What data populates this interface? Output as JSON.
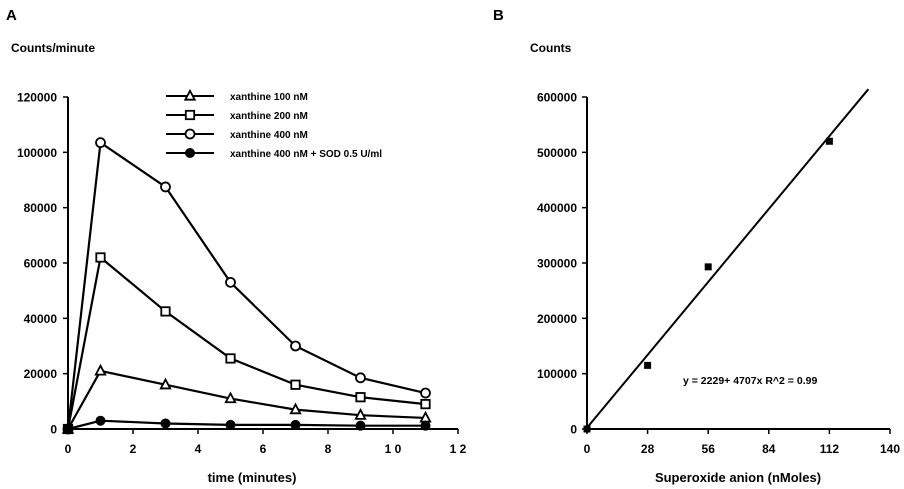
{
  "chart_data": [
    {
      "panel_label": "A",
      "type": "line",
      "ylabel": "Counts/minute",
      "xlabel": "time (minutes)",
      "xlim": [
        0,
        12
      ],
      "ylim": [
        0,
        120000
      ],
      "xticks": [
        "0",
        "2",
        "4",
        "6",
        "8",
        "1 0",
        "1 2"
      ],
      "yticks": [
        "0",
        "20000",
        "40000",
        "60000",
        "80000",
        "100000",
        "120000"
      ],
      "legend_position": "top-right",
      "grid": false,
      "x": [
        0,
        1,
        3,
        5,
        7,
        9,
        11
      ],
      "series": [
        {
          "name": "xanthine 100 nM",
          "marker": "triangle-open",
          "values": [
            0,
            21000,
            16000,
            11000,
            7000,
            5000,
            4000
          ]
        },
        {
          "name": "xanthine 200 nM",
          "marker": "square-open",
          "values": [
            0,
            62000,
            42500,
            25500,
            16000,
            11500,
            9000
          ]
        },
        {
          "name": "xanthine 400 nM",
          "marker": "circle-open",
          "values": [
            0,
            103500,
            87500,
            53000,
            30000,
            18500,
            13000
          ]
        },
        {
          "name": "xanthine 400 nM + SOD 0.5 U/ml",
          "marker": "circle-filled",
          "values": [
            0,
            3000,
            2000,
            1500,
            1500,
            1200,
            1200
          ]
        }
      ]
    },
    {
      "panel_label": "B",
      "type": "scatter",
      "ylabel": "Counts",
      "xlabel": "Superoxide anion  (nMoles)",
      "xlim": [
        0,
        140
      ],
      "ylim": [
        0,
        600000
      ],
      "xticks": [
        "0",
        "28",
        "56",
        "84",
        "112",
        "140"
      ],
      "yticks": [
        "0",
        "100000",
        "200000",
        "300000",
        "400000",
        "500000",
        "600000"
      ],
      "grid": false,
      "points": {
        "x": [
          0,
          28,
          56,
          112
        ],
        "y": [
          0,
          115000,
          293000,
          520000
        ]
      },
      "fit_line": {
        "intercept": 2229,
        "slope": 4707,
        "x_range": [
          0,
          130
        ]
      },
      "annotation": "y = 2229+ 4707x   R^2 = 0.99"
    }
  ]
}
